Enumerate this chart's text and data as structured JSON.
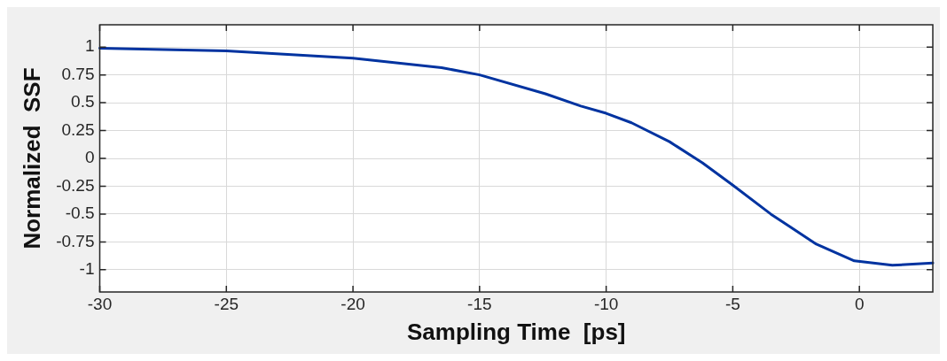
{
  "chart_data": {
    "type": "line",
    "xlabel": "Sampling Time  [ps]",
    "ylabel": "Normalized  SSF",
    "xlim": [
      -30,
      2.9
    ],
    "xticks": [
      -30,
      -25,
      -20,
      -15,
      -10,
      -5,
      0
    ],
    "ylim": [
      -1.2,
      1.2
    ],
    "yticks": [
      -1,
      -0.75,
      -0.5,
      -0.25,
      0,
      0.25,
      0.5,
      0.75,
      1
    ],
    "grid": true,
    "marker": "none",
    "line_style": "solid",
    "series": [
      {
        "color": "#0033a0",
        "x": [
          -30,
          -25,
          -20,
          -16.5,
          -15,
          -12.4,
          -11,
          -10,
          -9,
          -7.5,
          -6.2,
          -5,
          -3.5,
          -1.7,
          -0.2,
          1.3,
          2.9
        ],
        "values": [
          0.99,
          0.965,
          0.9,
          0.815,
          0.75,
          0.58,
          0.47,
          0.405,
          0.32,
          0.15,
          -0.04,
          -0.24,
          -0.5,
          -0.77,
          -0.92,
          -0.96,
          -0.94
        ]
      }
    ]
  }
}
